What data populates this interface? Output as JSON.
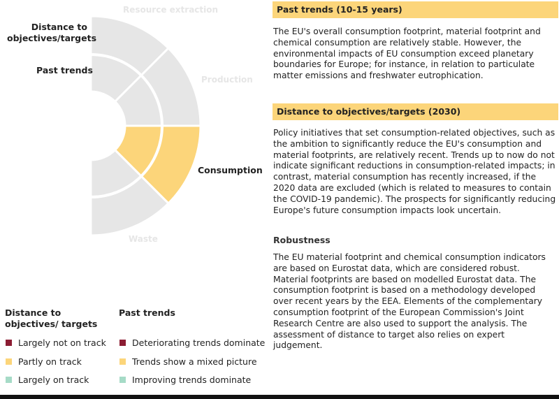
{
  "colors": {
    "grey": "#e6e6e6",
    "highlight": "#fcd57a",
    "red": "#8c1d33",
    "yellow": "#fcd57a",
    "green": "#a6dbc7"
  },
  "wheel": {
    "stage_labels": {
      "resource": "Resource extraction",
      "production": "Production",
      "consumption": "Consumption",
      "waste": "Waste"
    },
    "ring_labels": {
      "distance": "Distance to objectives/targets",
      "past": "Past trends"
    },
    "segments": [
      {
        "stage": "Resource extraction",
        "outer": "grey",
        "inner": "grey"
      },
      {
        "stage": "Production",
        "outer": "grey",
        "inner": "grey"
      },
      {
        "stage": "Consumption",
        "outer": "yellow",
        "inner": "yellow"
      },
      {
        "stage": "Waste",
        "outer": "grey",
        "inner": "grey"
      }
    ]
  },
  "sections": {
    "past": {
      "title": "Past trends (10-15 years)",
      "text": "The EU's overall consumption footprint, material footprint and chemical consumption are relatively stable. However, the environmental impacts of EU consumption exceed planetary boundaries for Europe; for instance, in relation to particulate matter emissions and freshwater eutrophication."
    },
    "distance": {
      "title": "Distance to objectives/targets (2030)",
      "text": "Policy initiatives that set consumption-related objectives, such as the ambition to significantly reduce the EU's consumption and material footprints, are relatively recent. Trends up to now do not indicate significant reductions in consumption-related impacts; in contrast, material consumption has recently increased, if the 2020 data are excluded (which is related to measures to contain the COVID-19 pandemic). The prospects for significantly reducing Europe's future consumption impacts look uncertain."
    },
    "robustness": {
      "title": "Robustness",
      "text": "The EU material footprint and chemical consumption indicators are based on Eurostat data, which are considered robust. Material footprints are based on modelled Eurostat data. The consumption footprint is based on a methodology developed over recent years by the EEA. Elements of the complementary consumption footprint of the European Commission's Joint Research Centre are also used to support the analysis. The assessment of distance to target also relies on expert judgement."
    }
  },
  "legend": {
    "distance_title": "Distance to objectives/ targets",
    "past_title": "Past trends",
    "distance_items": [
      "Largely not on track",
      "Partly on track",
      "Largely on track"
    ],
    "past_items": [
      "Deteriorating trends dominate",
      "Trends show a mixed picture",
      "Improving trends dominate"
    ]
  }
}
